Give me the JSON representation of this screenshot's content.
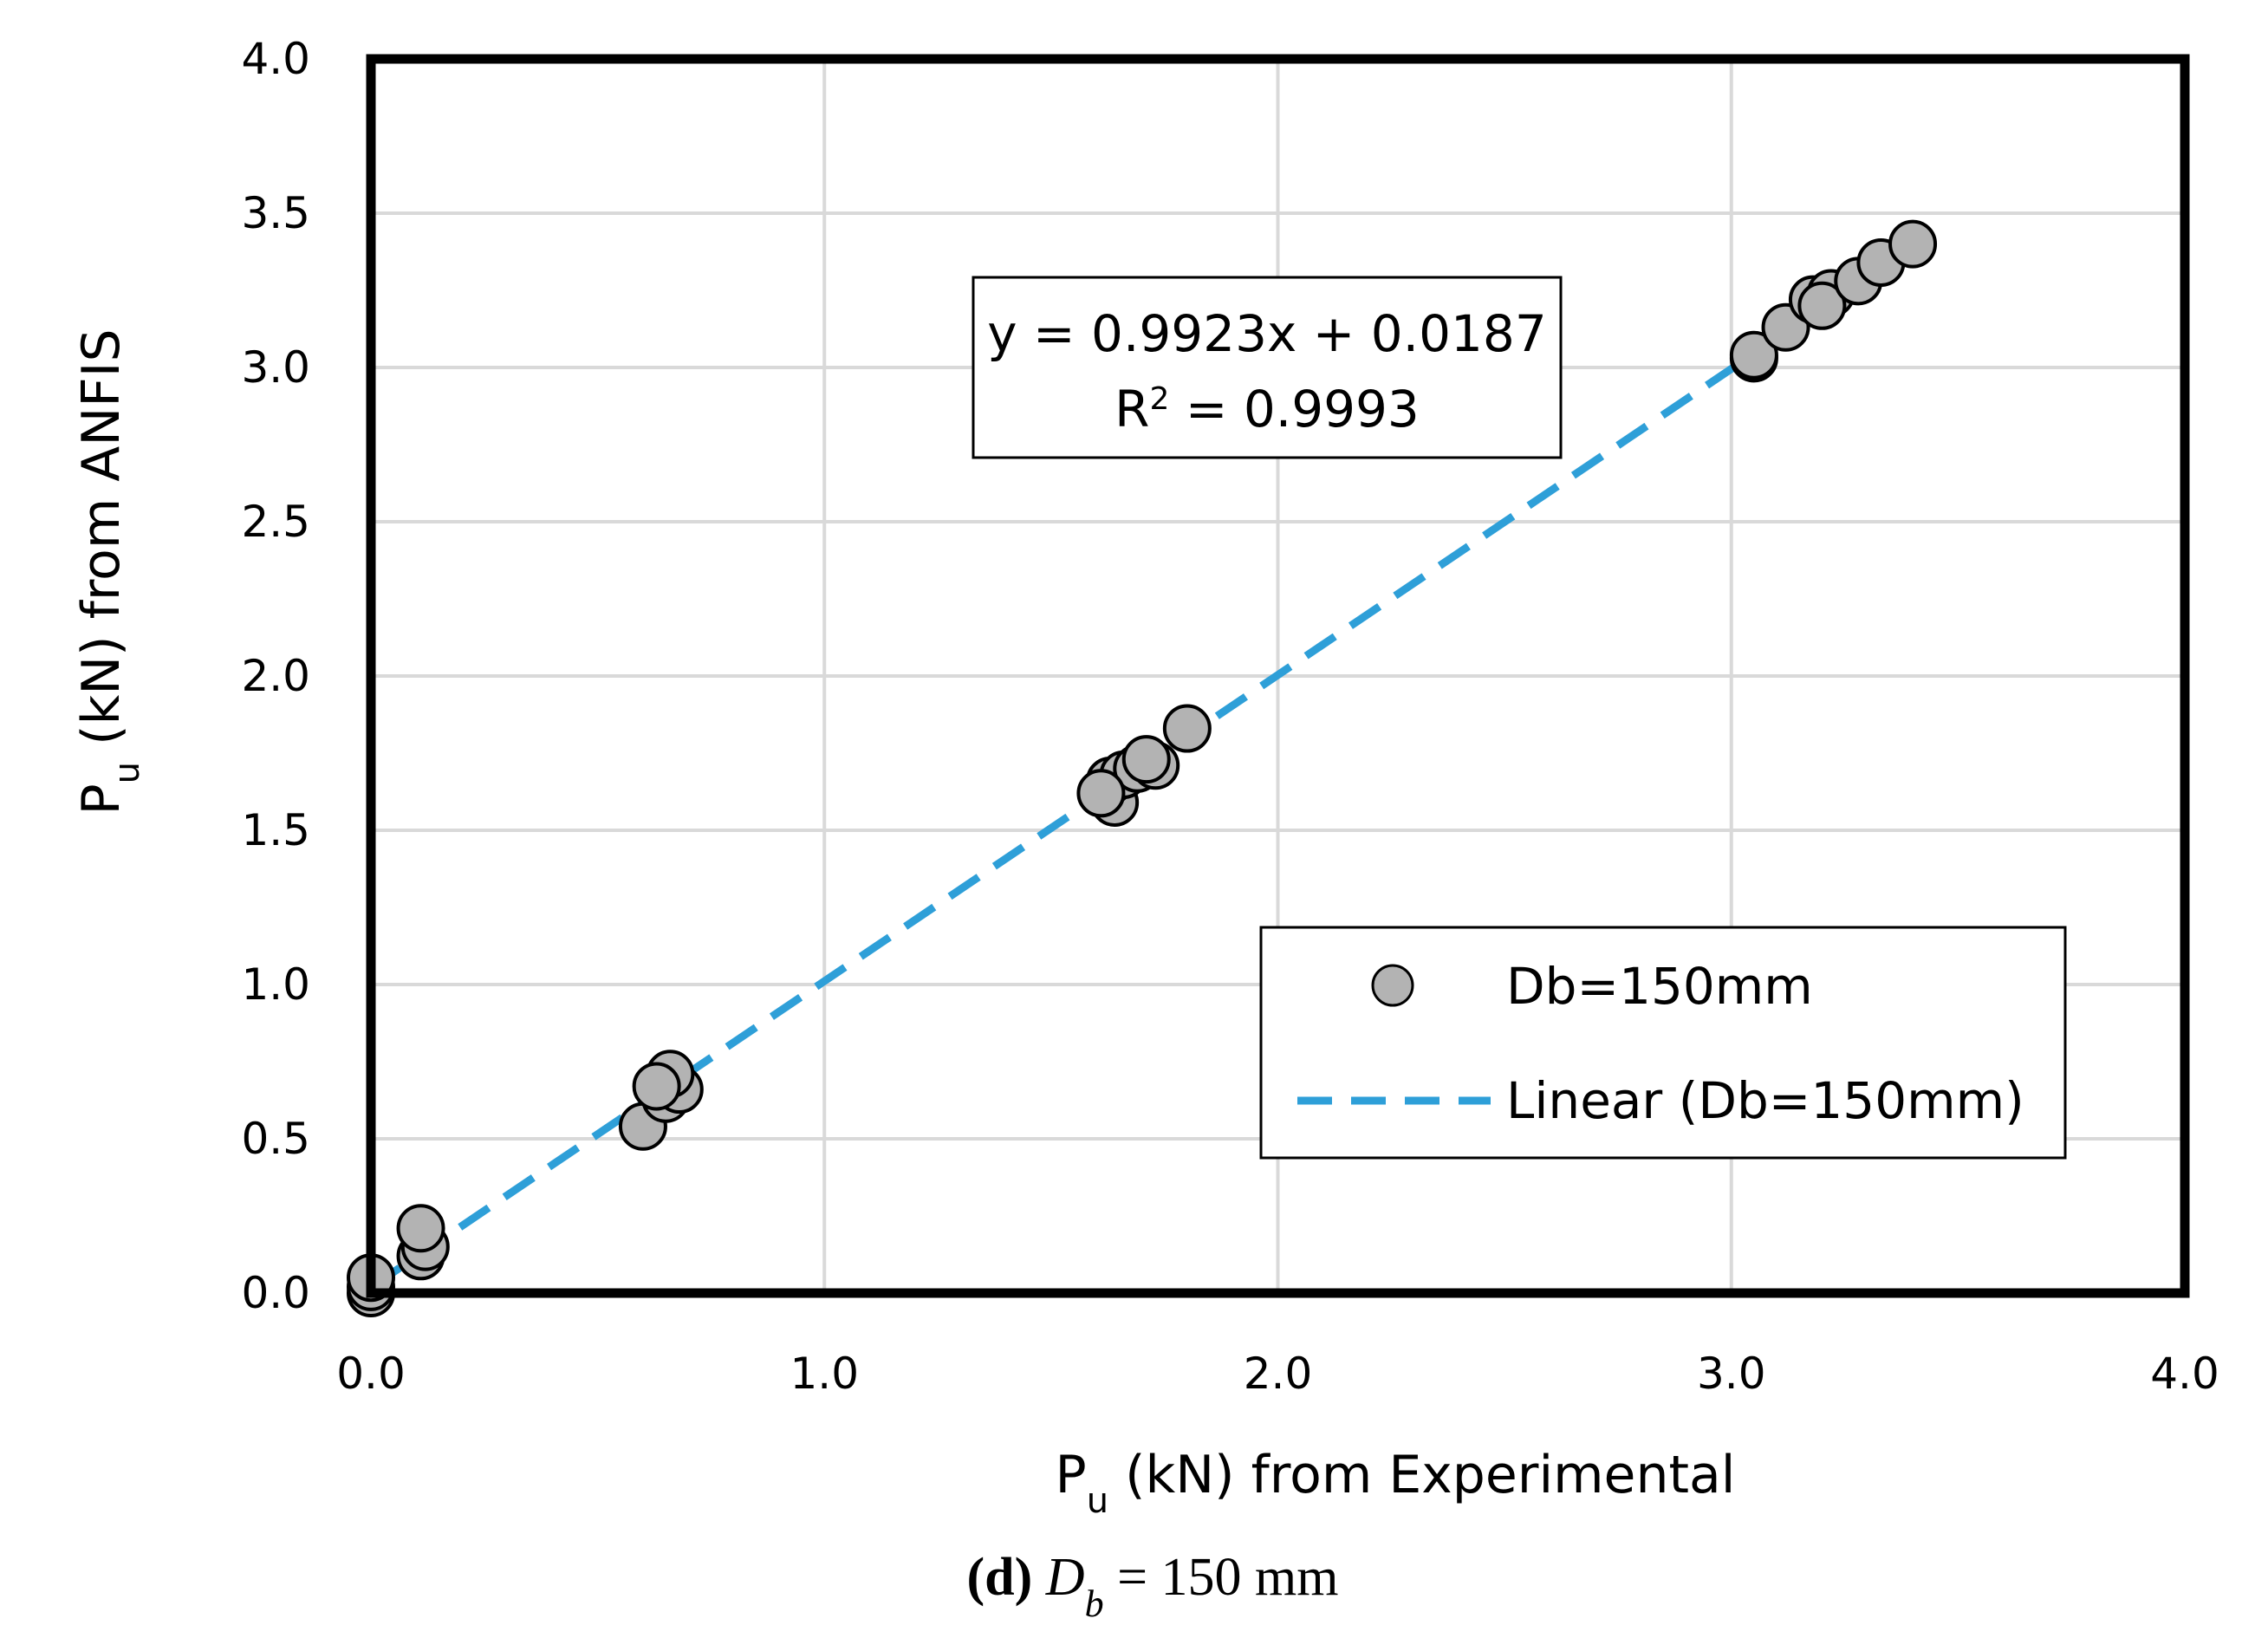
{
  "chart_data": {
    "type": "scatter",
    "xlabel_main": "P",
    "xlabel_sub": "u",
    "xlabel_rest": " (kN) from Experimental",
    "ylabel_main": "P",
    "ylabel_sub": "u",
    "ylabel_rest": " (kN) from ANFIS",
    "xlim": [
      0,
      4
    ],
    "ylim": [
      0,
      4
    ],
    "x_ticks": [
      0,
      1,
      2,
      3,
      4
    ],
    "y_ticks": [
      0,
      0.5,
      1,
      1.5,
      2,
      2.5,
      3,
      3.5,
      4
    ],
    "tick_format_decimals": 1,
    "grid": true,
    "series": [
      {
        "name": "Db=150mm",
        "marker_color": "#b3b3b3",
        "marker_edge": "#000000",
        "points": [
          [
            0.0,
            0.0
          ],
          [
            0.0,
            0.02
          ],
          [
            0.0,
            0.05
          ],
          [
            0.11,
            0.12
          ],
          [
            0.12,
            0.15
          ],
          [
            0.11,
            0.21
          ],
          [
            0.6,
            0.54
          ],
          [
            0.65,
            0.63
          ],
          [
            0.68,
            0.66
          ],
          [
            0.66,
            0.71
          ],
          [
            0.63,
            0.67
          ],
          [
            1.64,
            1.59
          ],
          [
            1.63,
            1.66
          ],
          [
            1.66,
            1.68
          ],
          [
            1.69,
            1.7
          ],
          [
            1.73,
            1.71
          ],
          [
            1.71,
            1.73
          ],
          [
            1.61,
            1.62
          ],
          [
            1.8,
            1.83
          ],
          [
            3.05,
            3.03
          ],
          [
            3.05,
            3.04
          ],
          [
            3.12,
            3.13
          ],
          [
            3.18,
            3.22
          ],
          [
            3.22,
            3.24
          ],
          [
            3.2,
            3.2
          ],
          [
            3.28,
            3.28
          ],
          [
            3.33,
            3.34
          ],
          [
            3.4,
            3.4
          ]
        ]
      }
    ],
    "trendline": {
      "name": "Linear (Db=150mm)",
      "slope": 0.9923,
      "intercept": 0.0187,
      "x_range": [
        0,
        3.4
      ],
      "color": "#2e9fd8",
      "style": "dashed"
    },
    "equation_text": "y = 0.9923x + 0.0187",
    "r2_label": "R",
    "r2_sup": "2",
    "r2_rest": " = 0.9993",
    "legend": {
      "placement": "bottom-right",
      "entries": [
        "Db=150mm",
        "Linear (Db=150mm)"
      ]
    }
  },
  "caption": {
    "letter": "d",
    "var_main": "D",
    "var_sub": "b",
    "rest": " = 150 mm"
  }
}
